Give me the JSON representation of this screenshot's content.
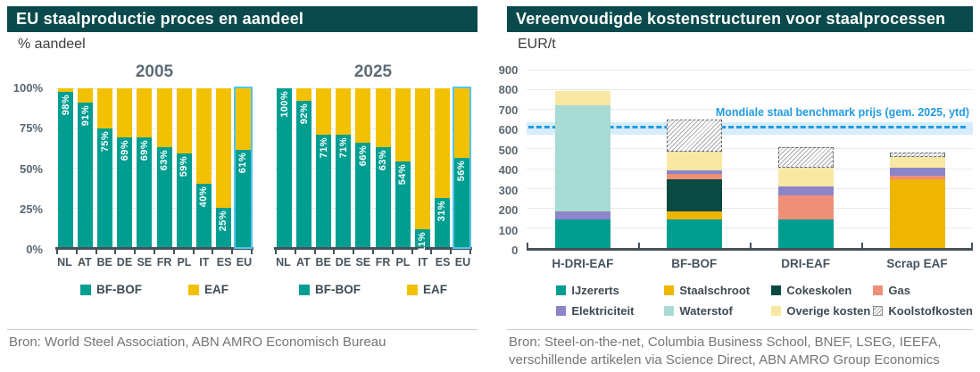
{
  "left_panel": {
    "title": "EU staalproductie proces en aandeel",
    "unit_label": "% aandeel",
    "source": "Bron: World Steel Association, ABN AMRO Economisch Bureau"
  },
  "right_panel": {
    "title": "Vereenvoudigde kostenstructuren voor staalprocessen",
    "unit_label": "EUR/t",
    "source_line1": "Bron: Steel-on-the-net, Columbia Business School, BNEF, LSEG, IEEFA,",
    "source_line2": "verschillende artikelen via Science Direct, ABN AMRO Group Economics"
  },
  "chart_data": [
    {
      "type": "bar",
      "stacked": true,
      "title": "EU staalproductie proces en aandeel",
      "ylabel": "% aandeel",
      "ylim": [
        0,
        100
      ],
      "grid": true,
      "y_ticks": [
        {
          "value": 100,
          "label": "100%"
        },
        {
          "value": 75,
          "label": "75%"
        },
        {
          "value": 50,
          "label": "50%"
        },
        {
          "value": 25,
          "label": "25%"
        },
        {
          "value": 0,
          "label": "0%"
        }
      ],
      "categories": [
        "NL",
        "AT",
        "BE",
        "DE",
        "SE",
        "FR",
        "PL",
        "IT",
        "ES",
        "EU"
      ],
      "highlight_category": "EU",
      "groups": [
        {
          "title": "2005",
          "series": [
            {
              "name": "BF-BOF",
              "values": [
                98,
                91,
                75,
                69,
                69,
                63,
                59,
                40,
                25,
                61
              ]
            },
            {
              "name": "EAF",
              "values": [
                2,
                9,
                25,
                31,
                31,
                37,
                41,
                60,
                75,
                39
              ]
            }
          ]
        },
        {
          "title": "2025",
          "series": [
            {
              "name": "BF-BOF",
              "values": [
                100,
                92,
                71,
                71,
                66,
                63,
                54,
                11,
                31,
                56
              ]
            },
            {
              "name": "EAF",
              "values": [
                0,
                8,
                29,
                29,
                34,
                37,
                46,
                89,
                69,
                44
              ]
            }
          ]
        }
      ],
      "legend": [
        {
          "label": "BF-BOF",
          "color": "#009e91"
        },
        {
          "label": "EAF",
          "color": "#f3c104"
        }
      ],
      "legend_position": "bottom"
    },
    {
      "type": "bar",
      "stacked": true,
      "title": "Vereenvoudigde kostenstructuren voor staalprocessen",
      "ylabel": "EUR/t",
      "ylim": [
        0,
        900
      ],
      "grid": true,
      "y_ticks": [
        {
          "value": 900,
          "label": "900"
        },
        {
          "value": 800,
          "label": "800"
        },
        {
          "value": 700,
          "label": "700"
        },
        {
          "value": 600,
          "label": "600"
        },
        {
          "value": 500,
          "label": "500"
        },
        {
          "value": 400,
          "label": "400"
        },
        {
          "value": 300,
          "label": "300"
        },
        {
          "value": 200,
          "label": "200"
        },
        {
          "value": 100,
          "label": "100"
        },
        {
          "value": 0,
          "label": "0"
        }
      ],
      "categories": [
        "H-DRI-EAF",
        "BF-BOF",
        "DRI-EAF",
        "Scrap EAF"
      ],
      "series_meta": [
        {
          "key": "ijzererts",
          "label": "IJzererts",
          "color": "#009e91"
        },
        {
          "key": "staalschroot",
          "label": "Staalschroot",
          "color": "#eeb600"
        },
        {
          "key": "cokeskolen",
          "label": "Cokeskolen",
          "color": "#0b4a43"
        },
        {
          "key": "gas",
          "label": "Gas",
          "color": "#ef8f77"
        },
        {
          "key": "elektriciteit",
          "label": "Elektriciteit",
          "color": "#8c85c8"
        },
        {
          "key": "waterstof",
          "label": "Waterstof",
          "color": "#a8dbd3"
        },
        {
          "key": "overige",
          "label": "Overige kosten",
          "color": "#f9e7a4"
        },
        {
          "key": "koolstof",
          "label": "Koolstofkosten",
          "color": "hatch"
        }
      ],
      "stacks": [
        {
          "category": "H-DRI-EAF",
          "total": 795,
          "segments": [
            {
              "key": "ijzererts",
              "value": 145
            },
            {
              "key": "elektriciteit",
              "value": 40
            },
            {
              "key": "waterstof",
              "value": 540
            },
            {
              "key": "overige",
              "value": 70
            }
          ]
        },
        {
          "category": "BF-BOF",
          "total": 650,
          "segments": [
            {
              "key": "ijzererts",
              "value": 145
            },
            {
              "key": "staalschroot",
              "value": 40
            },
            {
              "key": "cokeskolen",
              "value": 165
            },
            {
              "key": "gas",
              "value": 25
            },
            {
              "key": "elektriciteit",
              "value": 20
            },
            {
              "key": "overige",
              "value": 95
            },
            {
              "key": "koolstof",
              "value": 160
            }
          ]
        },
        {
          "category": "DRI-EAF",
          "total": 510,
          "segments": [
            {
              "key": "ijzererts",
              "value": 145
            },
            {
              "key": "gas",
              "value": 120
            },
            {
              "key": "elektriciteit",
              "value": 45
            },
            {
              "key": "overige",
              "value": 95
            },
            {
              "key": "koolstof",
              "value": 105
            }
          ]
        },
        {
          "category": "Scrap EAF",
          "total": 485,
          "segments": [
            {
              "key": "staalschroot",
              "value": 350
            },
            {
              "key": "gas",
              "value": 15
            },
            {
              "key": "elektriciteit",
              "value": 40
            },
            {
              "key": "overige",
              "value": 55
            },
            {
              "key": "koolstof",
              "value": 25
            }
          ]
        }
      ],
      "benchmark": {
        "label": "Mondiale staal benchmark prijs (gem. 2025, ytd)",
        "value": 605,
        "band": [
          575,
          640
        ],
        "line_color": "#1f9ce4",
        "band_color": "#cfeafb"
      }
    }
  ],
  "colors": {
    "header_bg": "#0a4a4c",
    "bf_bof_teal": "#009e91",
    "eaf_yellow": "#f3c104",
    "highlight_outline": "#54c3e9",
    "axis": "#45525b",
    "benchmark_blue": "#1f9ce4"
  }
}
